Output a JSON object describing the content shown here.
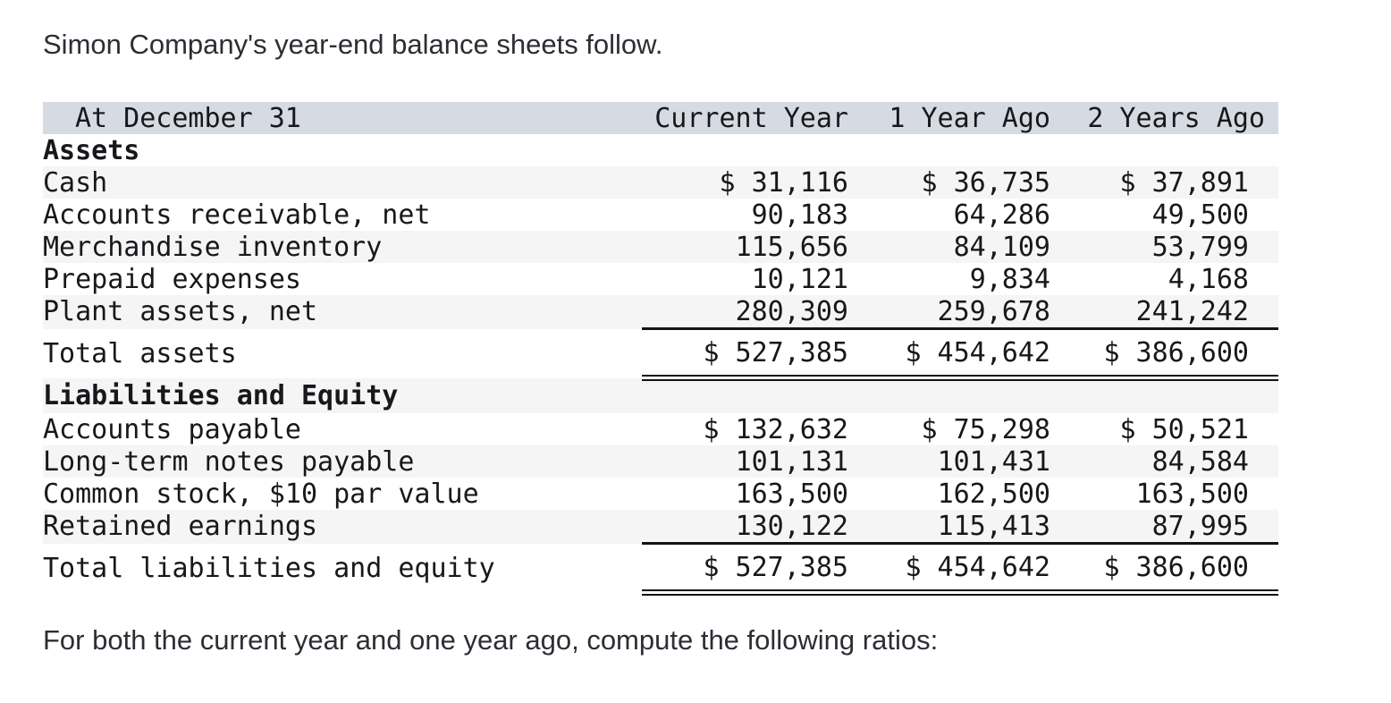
{
  "intro_text": "Simon Company's year-end balance sheets follow.",
  "footer_text": "For both the current year and one year ago, compute the following ratios:",
  "colors": {
    "header_bg": "#d6dae2",
    "row_alt_bg": "#f5f5f6",
    "text": "#17181b"
  },
  "balance_sheet": {
    "columns": [
      "At December 31",
      "Current Year",
      "1 Year Ago",
      "2 Years Ago"
    ],
    "rows": [
      {
        "label": "Assets",
        "style": "section",
        "shade": false,
        "values": [
          "",
          "",
          ""
        ]
      },
      {
        "label": "Cash",
        "style": "item",
        "shade": true,
        "values": [
          "$ 31,116",
          "$ 36,735",
          "$ 37,891"
        ]
      },
      {
        "label": "Accounts receivable, net",
        "style": "item",
        "shade": false,
        "values": [
          "90,183",
          "64,286",
          "49,500"
        ]
      },
      {
        "label": "Merchandise inventory",
        "style": "item",
        "shade": true,
        "values": [
          "115,656",
          "84,109",
          "53,799"
        ]
      },
      {
        "label": "Prepaid expenses",
        "style": "item",
        "shade": false,
        "values": [
          "10,121",
          "9,834",
          "4,168"
        ]
      },
      {
        "label": "Plant assets, net",
        "style": "item",
        "shade": true,
        "rule_below": "single",
        "values": [
          "280,309",
          "259,678",
          "241,242"
        ]
      },
      {
        "label": "Total assets",
        "style": "total",
        "shade": false,
        "rule_below": "double",
        "values": [
          "$ 527,385",
          "$ 454,642",
          "$ 386,600"
        ]
      },
      {
        "label": "Liabilities and Equity",
        "style": "section",
        "shade": true,
        "values": [
          "",
          "",
          ""
        ]
      },
      {
        "label": "Accounts payable",
        "style": "item",
        "shade": false,
        "values": [
          "$ 132,632",
          "$ 75,298",
          "$ 50,521"
        ]
      },
      {
        "label": "Long-term notes payable",
        "style": "item",
        "shade": true,
        "values": [
          "101,131",
          "101,431",
          "84,584"
        ]
      },
      {
        "label": "Common stock, $10 par value",
        "style": "item",
        "shade": false,
        "values": [
          "163,500",
          "162,500",
          "163,500"
        ]
      },
      {
        "label": "Retained earnings",
        "style": "item",
        "shade": true,
        "rule_below": "single",
        "values": [
          "130,122",
          "115,413",
          "87,995"
        ]
      },
      {
        "label": "Total liabilities and equity",
        "style": "total",
        "shade": false,
        "rule_below": "double",
        "values": [
          "$ 527,385",
          "$ 454,642",
          "$ 386,600"
        ]
      }
    ]
  }
}
